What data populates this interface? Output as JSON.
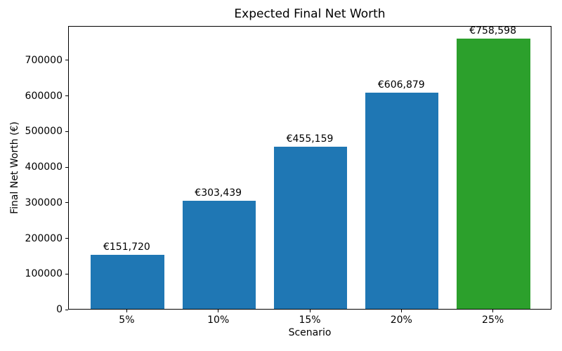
{
  "chart_data": {
    "type": "bar",
    "title": "Expected Final Net Worth",
    "xlabel": "Scenario",
    "ylabel": "Final Net Worth (€)",
    "categories": [
      "5%",
      "10%",
      "15%",
      "20%",
      "25%"
    ],
    "values": [
      151720,
      303439,
      455159,
      606879,
      758598
    ],
    "bar_labels": [
      "€151,720",
      "€303,439",
      "€455,159",
      "€606,879",
      "€758,598"
    ],
    "bar_colors": [
      "#1f77b4",
      "#1f77b4",
      "#1f77b4",
      "#1f77b4",
      "#2ca02c"
    ],
    "yticks": [
      0,
      100000,
      200000,
      300000,
      400000,
      500000,
      600000,
      700000
    ],
    "ylim": [
      0,
      796528
    ],
    "grid": false,
    "legend_position": "none",
    "axis_color": "#000000",
    "text_color": "#000000",
    "background_color": "#ffffff"
  }
}
